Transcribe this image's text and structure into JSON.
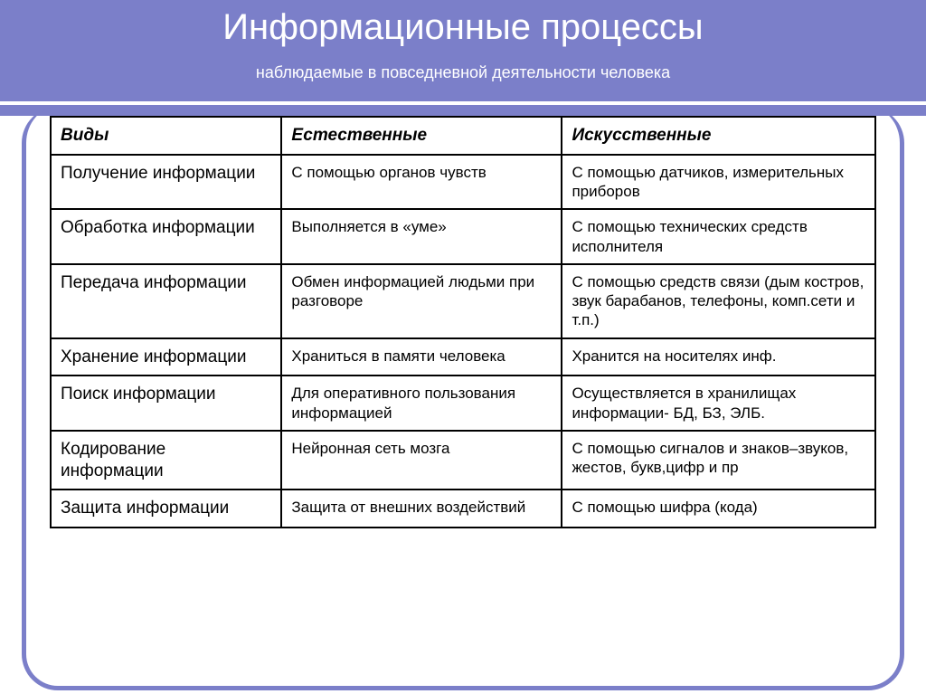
{
  "header": {
    "title": "Информационные процессы",
    "subtitle": "наблюдаемые в повседневной деятельности человека"
  },
  "table": {
    "columns": [
      "Виды",
      "Естественные",
      "Искусственные"
    ],
    "rows": [
      {
        "type": "Получение информации",
        "natural": "С помощью органов чувств",
        "artificial": "С помощью датчиков, измерительных приборов"
      },
      {
        "type": "Обработка информации",
        "natural": "Выполняется в «уме»",
        "artificial": "С помощью технических средств исполнителя"
      },
      {
        "type": "Передача информации",
        "natural": "Обмен информацией людьми при разговоре",
        "artificial": "С помощью средств связи (дым костров, звук барабанов,\nтелефоны, комп.сети и т.п.)"
      },
      {
        "type": "Хранение информации",
        "natural": "Храниться в памяти человека",
        "artificial": "Хранится на носителях инф."
      },
      {
        "type": "Поиск информации",
        "natural": "Для оперативного пользования информацией",
        "artificial": "Осуществляется в хранилищах информации- БД, БЗ, ЭЛБ."
      },
      {
        "type": "Кодирование информации",
        "natural": "Нейронная сеть мозга",
        "artificial": "С помощью сигналов и знаков–звуков, жестов, букв,цифр и пр"
      },
      {
        "type": "Защита информации",
        "natural": "Защита от внешних воздействий",
        "artificial": "С помощью шифра (кода)"
      }
    ]
  },
  "colors": {
    "header_bg": "#7b7fc9",
    "header_text": "#ffffff",
    "border": "#000000",
    "frame": "#7b7fc9"
  }
}
